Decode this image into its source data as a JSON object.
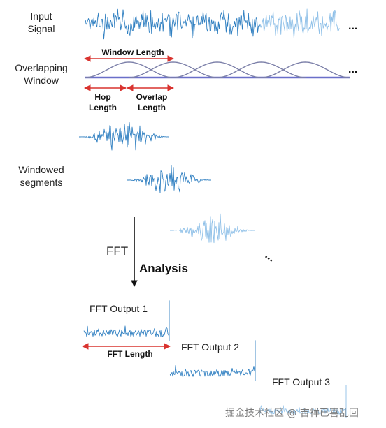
{
  "labels": {
    "input_signal_line1": "Input",
    "input_signal_line2": "Signal",
    "overlapping_window_line1": "Overlapping",
    "overlapping_window_line2": "Window",
    "window_length": "Window Length",
    "hop_length_line1": "Hop",
    "hop_length_line2": "Length",
    "overlap_length_line1": "Overlap",
    "overlap_length_line2": "Length",
    "windowed_segments_line1": "Windowed",
    "windowed_segments_line2": "segments",
    "fft": "FFT",
    "analysis": "Analysis",
    "fft_output_1": "FFT Output 1",
    "fft_output_2": "FFT Output 2",
    "fft_output_3": "FFT Output 3",
    "fft_length": "FFT Length",
    "ellipsis": "...",
    "watermark": "掘金技术社区 @ 吉祥已喜乱回"
  },
  "colors": {
    "signal_dark": "#2f7fc1",
    "signal_light": "#8fc0e8",
    "window_curve": "#7b7fa8",
    "window_base": "#6a6fc9",
    "red_arrow": "#d9332f",
    "text": "#222222"
  }
}
